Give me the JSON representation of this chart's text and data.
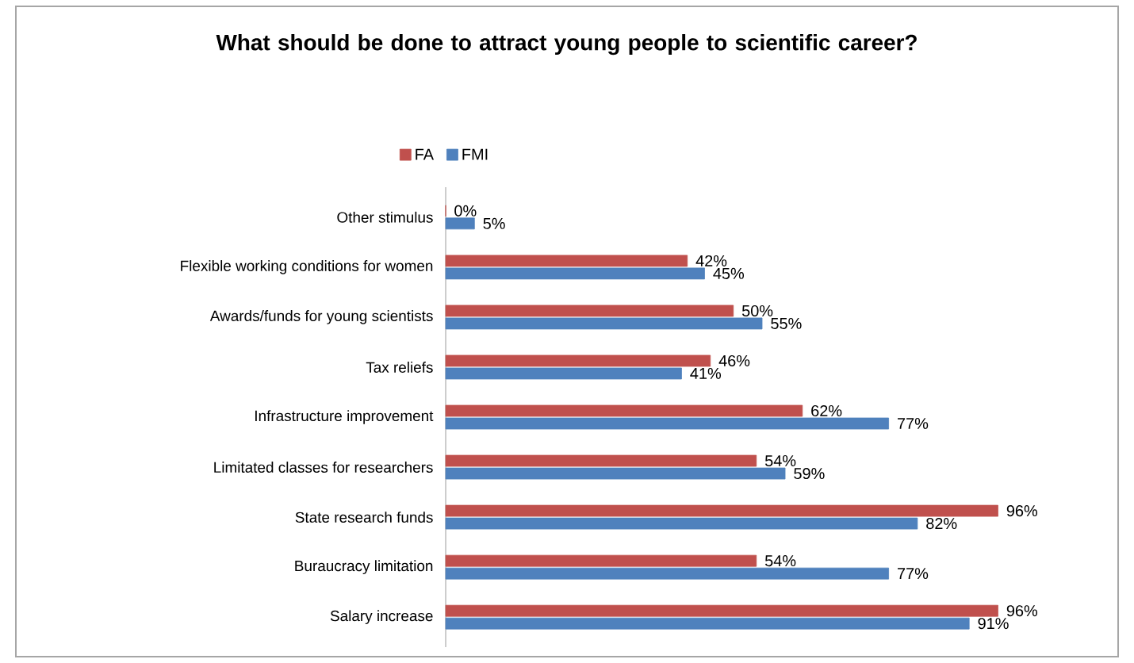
{
  "chart_data": {
    "type": "bar",
    "orientation": "horizontal",
    "title": "What should be done to attract young people to scientific career?",
    "categories": [
      "Other stimulus",
      "Flexible working conditions for women",
      "Awards/funds for young scientists",
      "Tax reliefs",
      "Infrastructure improvement",
      "Limitated classes for researchers",
      "State research funds",
      "Buraucracy limitation",
      "Salary increase"
    ],
    "series": [
      {
        "name": "FA",
        "color": "#c0504d",
        "values": [
          0,
          42,
          50,
          46,
          62,
          54,
          96,
          54,
          96
        ],
        "value_labels": [
          "0%",
          "42%",
          "50%",
          "46%",
          "62%",
          "54%",
          "96%",
          "54%",
          "96%"
        ]
      },
      {
        "name": "FMI",
        "color": "#4f81bd",
        "values": [
          5,
          45,
          55,
          41,
          77,
          59,
          82,
          77,
          91
        ],
        "value_labels": [
          "5%",
          "45%",
          "55%",
          "41%",
          "77%",
          "59%",
          "82%",
          "77%",
          "91%"
        ]
      }
    ],
    "legend": "top"
  }
}
